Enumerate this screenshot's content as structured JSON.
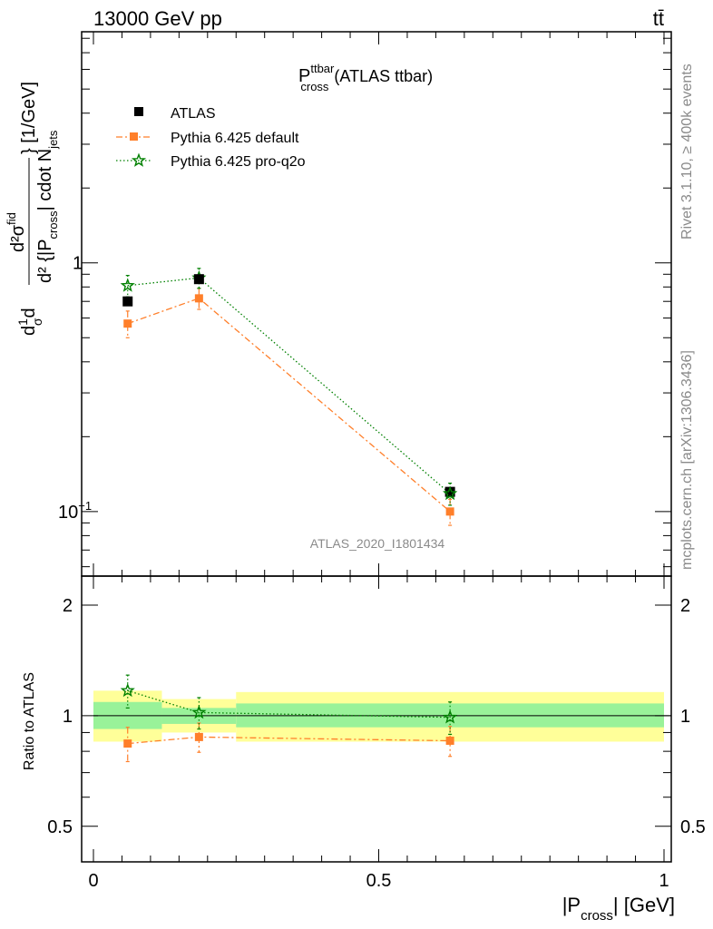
{
  "header": {
    "left": "13000 GeV pp",
    "right": "tt̄"
  },
  "side_text": {
    "rivet": "Rivet 3.1.10, ≥ 400k events",
    "mcplots": "mcplots.cern.ch [arXiv:1306.3436]"
  },
  "chart_data": [
    {
      "type": "line",
      "title": "P_cross^ttbar (ATLAS ttbar)",
      "title_main": "P",
      "title_sup": "ttbar",
      "title_sub": "cross",
      "title_rest": "(ATLAS ttbar)",
      "watermark": "ATLAS_2020_I1801434",
      "ylabel": "d²σ^fid / d|P_cross| d N_jets  [1/GeV] (normalised: 1/σ dσ/d²{|P_cross| cdot N_jets})",
      "ylabel_parts": {
        "prefix": "d",
        "frac_top": "1",
        "frac_bottom": "σ",
        "d": "d",
        "num": "d²σ",
        "num_sup": "fid",
        "den_prefix": "d² {|P",
        "den_sub": "cross",
        "den_mid": "| cdot N",
        "den_sub2": "jets",
        "suffix": "} [1/GeV]"
      },
      "yscale": "log",
      "ylim": [
        0.055,
        8.5
      ],
      "xlim": [
        -0.02,
        1.0
      ],
      "y_ticks": [
        {
          "value": 0.1,
          "label": "10",
          "sup": "−1"
        },
        {
          "value": 1,
          "label": "1",
          "sup": ""
        }
      ],
      "legend_position": "top-left",
      "series": [
        {
          "name": "ATLAS",
          "color": "#000000",
          "marker": "square",
          "x": [
            0.06,
            0.185,
            0.625
          ],
          "y": [
            0.7,
            0.86,
            0.12
          ],
          "err": [
            0.0,
            0.0,
            0.0
          ]
        },
        {
          "name": "Pythia 6.425 default",
          "color": "#ff7f2a",
          "marker": "square",
          "line": "dashdot",
          "x": [
            0.06,
            0.185,
            0.625
          ],
          "y": [
            0.57,
            0.72,
            0.1
          ],
          "err": [
            0.07,
            0.07,
            0.012
          ]
        },
        {
          "name": "Pythia 6.425 pro-q2o",
          "color": "#008000",
          "marker": "star",
          "line": "dotted",
          "x": [
            0.06,
            0.185,
            0.625
          ],
          "y": [
            0.81,
            0.87,
            0.118
          ],
          "err": [
            0.08,
            0.08,
            0.012
          ]
        }
      ]
    },
    {
      "type": "line",
      "ylabel": "Ratio to ATLAS",
      "xlabel": "|P_cross| [GeV]",
      "xlabel_parts": {
        "main": "|P",
        "sub": "cross",
        "rest": "| [GeV]"
      },
      "xlim": [
        -0.02,
        1.0
      ],
      "ylim": [
        0.4,
        2.4
      ],
      "yscale": "log",
      "x_ticks": [
        {
          "value": 0,
          "label": "0"
        },
        {
          "value": 0.5,
          "label": "0.5"
        },
        {
          "value": 1,
          "label": "1"
        }
      ],
      "y_ticks": [
        {
          "value": 0.5,
          "label": "0.5"
        },
        {
          "value": 1,
          "label": "1"
        },
        {
          "value": 2,
          "label": "2"
        }
      ],
      "bands": [
        {
          "x0": 0.0,
          "x1": 0.12,
          "inner": [
            0.92,
            1.09
          ],
          "outer": [
            0.85,
            1.17
          ]
        },
        {
          "x0": 0.12,
          "x1": 0.25,
          "inner": [
            0.95,
            1.05
          ],
          "outer": [
            0.9,
            1.11
          ]
        },
        {
          "x0": 0.25,
          "x1": 1.0,
          "inner": [
            0.93,
            1.08
          ],
          "outer": [
            0.85,
            1.16
          ]
        }
      ],
      "series": [
        {
          "name": "Pythia 6.425 default",
          "color": "#ff7f2a",
          "marker": "square",
          "line": "dashdot",
          "x": [
            0.06,
            0.185,
            0.625
          ],
          "y": [
            0.84,
            0.875,
            0.855
          ],
          "err": [
            0.09,
            0.08,
            0.08
          ]
        },
        {
          "name": "Pythia 6.425 pro-q2o",
          "color": "#008000",
          "marker": "star",
          "line": "dotted",
          "x": [
            0.06,
            0.185,
            0.625
          ],
          "y": [
            1.17,
            1.02,
            0.99
          ],
          "err": [
            0.12,
            0.1,
            0.1
          ]
        }
      ]
    }
  ]
}
